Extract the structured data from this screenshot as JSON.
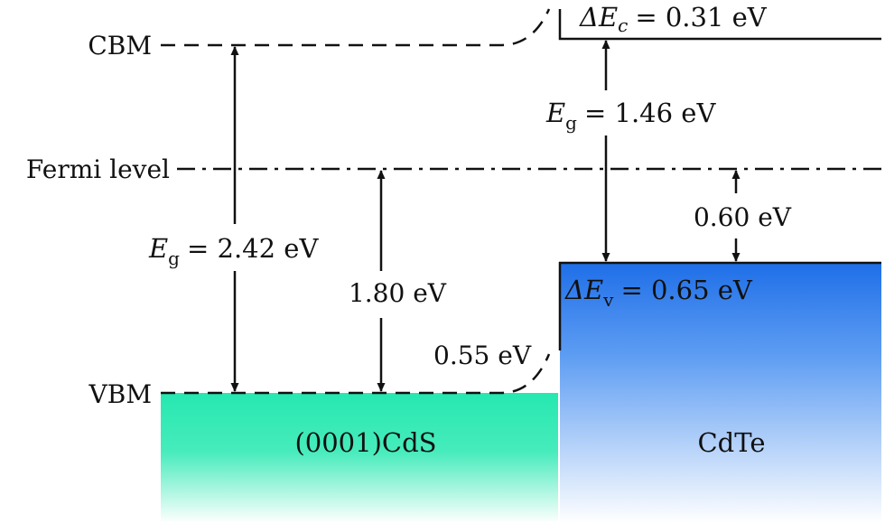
{
  "levels": {
    "cbm": "CBM",
    "fermi": "Fermi level",
    "vbm": "VBM"
  },
  "cds": {
    "eg_symbol": "E",
    "eg_sub": "g",
    "eg_value": "= 2.42 eV",
    "fermi_to_vbm": "1.80 eV",
    "name": "(0001)CdS",
    "color": "#26e8b0"
  },
  "cdte": {
    "eg_symbol": "E",
    "eg_sub": "g",
    "eg_value": "= 1.46 eV",
    "fermi_to_vbm": "0.60 eV",
    "name": "CdTe",
    "color": "#1e6ee8"
  },
  "offsets": {
    "dec_symbol": "ΔE",
    "dec_sub": "c",
    "dec_value": "= 0.31 eV",
    "dev_symbol": "ΔE",
    "dev_sub": "v",
    "dev_value": "= 0.65 eV",
    "bend": "0.55 eV"
  }
}
